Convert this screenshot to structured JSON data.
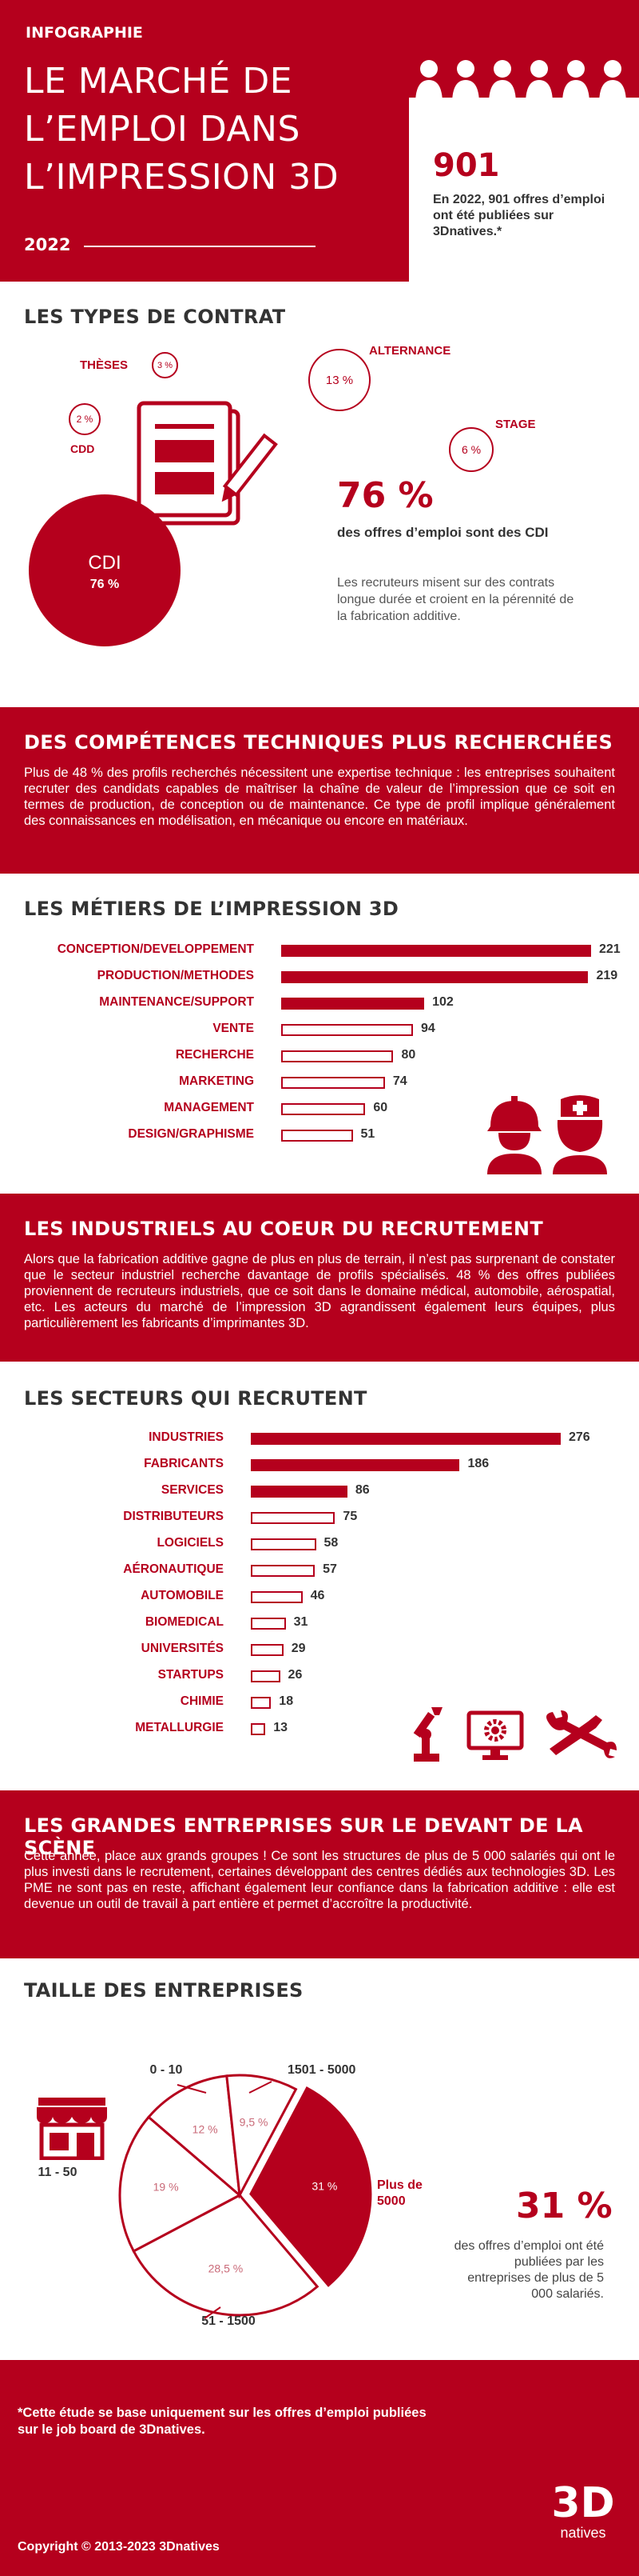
{
  "header": {
    "kicker": "INFOGRAPHIE",
    "title_lines": [
      "LE MARCHÉ DE",
      "L’EMPLOI DANS",
      "L’IMPRESSION 3D"
    ],
    "year": "2022",
    "stat_number": "901",
    "stat_text": "En 2022, 901 offres d’emploi ont été publiées sur 3Dnatives.*"
  },
  "contracts": {
    "heading": "LES TYPES DE CONTRAT",
    "these_label": "THÈSES",
    "these_value": "3 %",
    "cdd_label": "CDD",
    "cdd_value": "2 %",
    "alternance_label": "ALTERNANCE",
    "alternance_value": "13 %",
    "stage_label": "STAGE",
    "stage_value": "6 %",
    "cdi_label": "CDI",
    "cdi_value": "76 %",
    "big_stat": "76 %",
    "big_stat_text": "des offres d’emploi sont des CDI",
    "note": "Les recruteurs misent sur des contrats longue durée et croient en la pérennité de la fabrication additive."
  },
  "competences": {
    "heading": "DES COMPÉTENCES TECHNIQUES PLUS RECHERCHÉES",
    "text": "Plus de 48 % des profils recherchés nécessitent une expertise technique : les entreprises souhaitent recruter des candidats capables de maîtriser la chaîne de valeur de l’impression que ce soit en termes de production, de conception ou de maintenance. Ce type de profil implique généralement des connaissances en modélisation, en mécanique ou encore en matériaux."
  },
  "metiers": {
    "heading": "LES MÉTIERS DE L’IMPRESSION 3D"
  },
  "industriels": {
    "heading": "LES INDUSTRIELS AU COEUR DU RECRUTEMENT",
    "text": "Alors que la fabrication additive gagne de plus en plus de terrain, il n’est pas surprenant de constater que le secteur industriel recherche davantage de profils spécialisés. 48 % des offres publiées proviennent de recruteurs industriels, que ce soit dans le domaine médical, automobile, aérospatial, etc. Les acteurs du marché de l’impression 3D agrandissent également leurs équipes, plus particulièrement les fabricants d’imprimantes 3D."
  },
  "secteurs": {
    "heading": "LES SECTEURS QUI RECRUTENT"
  },
  "grandes": {
    "heading": "LES GRANDES ENTREPRISES SUR LE DEVANT DE LA SCÈNE",
    "text": "Cette année, place aux grands groupes ! Ce sont les structures de plus de 5 000 salariés qui ont le plus investi dans le recrutement, certaines développant des centres dédiés aux technologies 3D. Les PME ne sont pas en reste, affichant également leur confiance dans la fabrication additive : elle est devenue un outil de travail à part entière et permet d’accroître la productivité."
  },
  "taille": {
    "heading": "TAILLE DES ENTREPRISES",
    "big_stat": "31 %",
    "big_stat_text": "des offres d’emploi ont été publiées par les entreprises de plus de 5 000 salariés."
  },
  "footer": {
    "note": "*Cette étude se base uniquement sur les offres d’emploi publiées sur le job board de 3Dnatives.",
    "copyright": "Copyright © 2013-2023 3Dnatives",
    "logo_top": "3D",
    "logo_bottom": "natives"
  },
  "colors": {
    "primary": "#b5001d",
    "text": "#333333"
  },
  "chart_data": [
    {
      "type": "pie",
      "title": "LES TYPES DE CONTRAT",
      "categories": [
        "CDI",
        "ALTERNANCE",
        "STAGE",
        "THÈSES",
        "CDD"
      ],
      "values": [
        76,
        13,
        6,
        3,
        2
      ],
      "unit": "%"
    },
    {
      "type": "bar",
      "title": "LES MÉTIERS DE L’IMPRESSION 3D",
      "orientation": "horizontal",
      "categories": [
        "CONCEPTION/DEVELOPPEMENT",
        "PRODUCTION/METHODES",
        "MAINTENANCE/SUPPORT",
        "VENTE",
        "RECHERCHE",
        "MARKETING",
        "MANAGEMENT",
        "DESIGN/GRAPHISME"
      ],
      "values": [
        221,
        219,
        102,
        94,
        80,
        74,
        60,
        51
      ],
      "filled": [
        true,
        true,
        true,
        false,
        false,
        false,
        false,
        false
      ],
      "xlim": [
        0,
        221
      ]
    },
    {
      "type": "bar",
      "title": "LES SECTEURS QUI RECRUTENT",
      "orientation": "horizontal",
      "categories": [
        "INDUSTRIES",
        "FABRICANTS",
        "SERVICES",
        "DISTRIBUTEURS",
        "LOGICIELS",
        "AÉRONAUTIQUE",
        "AUTOMOBILE",
        "BIOMEDICAL",
        "UNIVERSITÉS",
        "STARTUPS",
        "CHIMIE",
        "METALLURGIE"
      ],
      "values": [
        276,
        186,
        86,
        75,
        58,
        57,
        46,
        31,
        29,
        26,
        18,
        13
      ],
      "filled": [
        true,
        true,
        true,
        false,
        false,
        false,
        false,
        false,
        false,
        false,
        false,
        false
      ],
      "xlim": [
        0,
        276
      ]
    },
    {
      "type": "pie",
      "title": "TAILLE DES ENTREPRISES",
      "categories": [
        "Plus de 5000",
        "51 - 1500",
        "11 - 50",
        "0 - 10",
        "1501 - 5000"
      ],
      "values": [
        31,
        28.5,
        19,
        12,
        9.5
      ],
      "value_labels": [
        "31 %",
        "28,5 %",
        "19 %",
        "12 %",
        "9,5 %"
      ]
    }
  ]
}
